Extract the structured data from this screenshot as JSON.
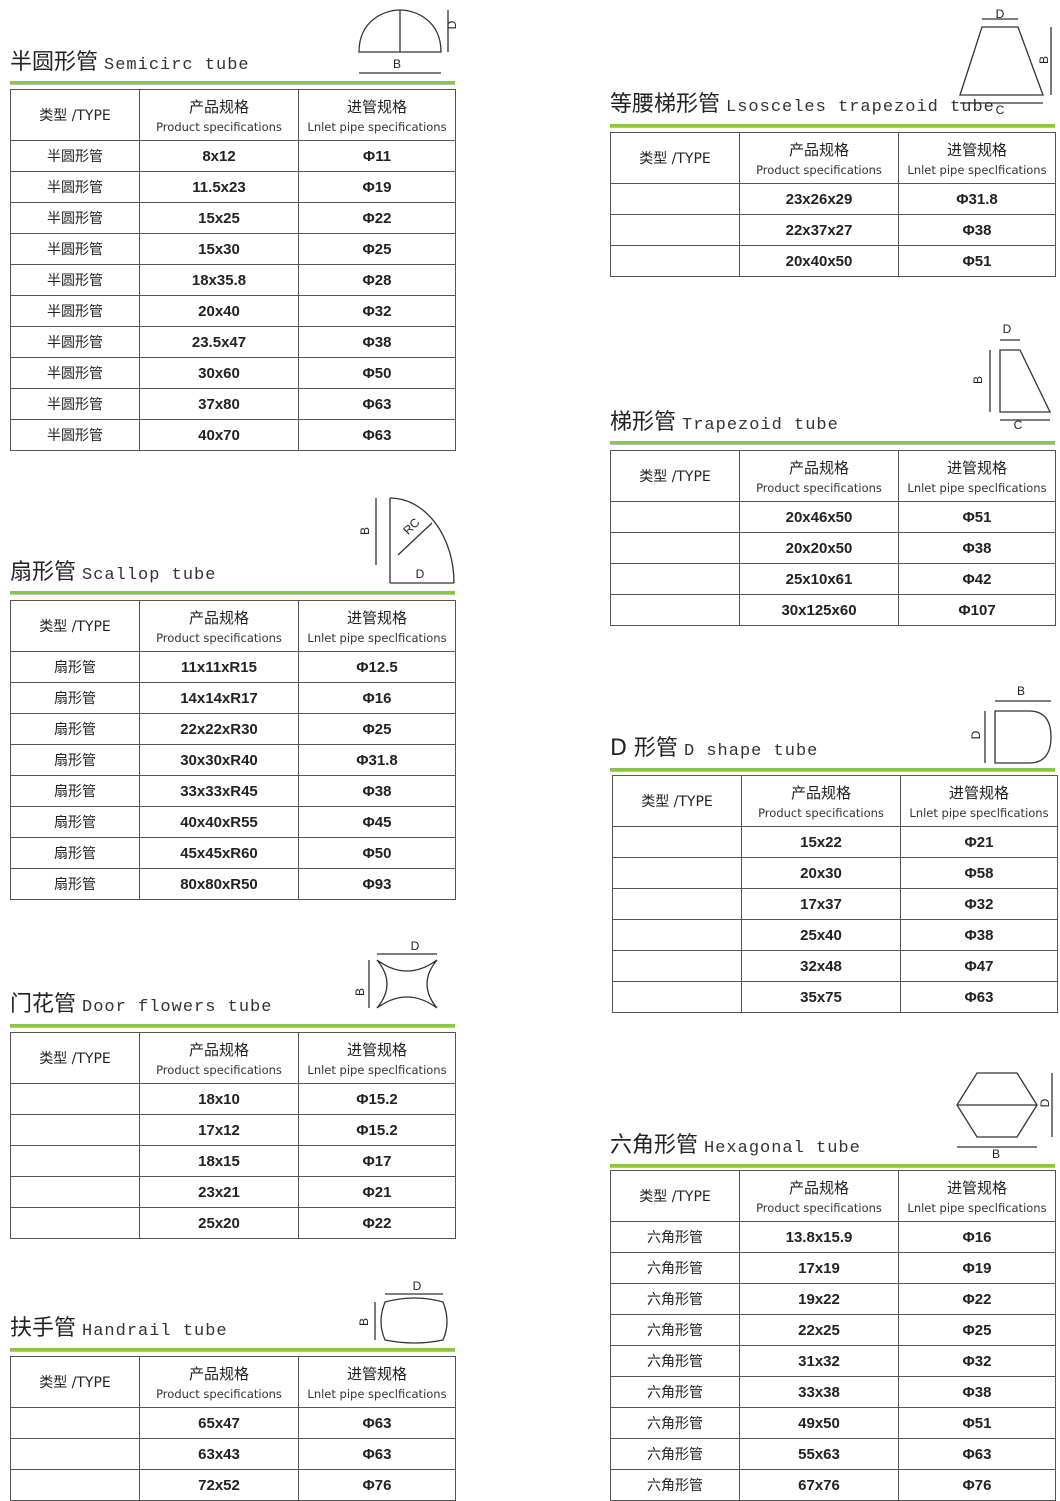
{
  "sections": [
    {
      "title_cn": "半圆形管",
      "title_en": "Semicirc tube",
      "diagram": {
        "d": "D",
        "b": "B"
      },
      "header": {
        "type": "类型 /TYPE",
        "spec_cn": "产品规格",
        "spec_en": "Product specifications",
        "inlet_cn": "进管规格",
        "inlet_en": "Lnlet pipe specifications"
      },
      "rows": [
        {
          "type": "半圆形管",
          "spec": "8x12",
          "inlet": "Φ11"
        },
        {
          "type": "半圆形管",
          "spec": "11.5x23",
          "inlet": "Φ19"
        },
        {
          "type": "半圆形管",
          "spec": "15x25",
          "inlet": "Φ22"
        },
        {
          "type": "半圆形管",
          "spec": "15x30",
          "inlet": "Φ25"
        },
        {
          "type": "半圆形管",
          "spec": "18x35.8",
          "inlet": "Φ28"
        },
        {
          "type": "半圆形管",
          "spec": "20x40",
          "inlet": "Φ32"
        },
        {
          "type": "半圆形管",
          "spec": "23.5x47",
          "inlet": "Φ38"
        },
        {
          "type": "半圆形管",
          "spec": "30x60",
          "inlet": "Φ50"
        },
        {
          "type": "半圆形管",
          "spec": "37x80",
          "inlet": "Φ63"
        },
        {
          "type": "半圆形管",
          "spec": "40x70",
          "inlet": "Φ63"
        }
      ]
    },
    {
      "title_cn": "扇形管",
      "title_en": "Scallop tube",
      "diagram": {
        "b": "B",
        "rc": "RC",
        "d": "D"
      },
      "header": {
        "type": "类型 /TYPE",
        "spec_cn": "产品规格",
        "spec_en": "Product specifications",
        "inlet_cn": "进管规格",
        "inlet_en": "Lnlet pipe speclfications"
      },
      "rows": [
        {
          "type": "扇形管",
          "spec": "11x11xR15",
          "inlet": "Φ12.5"
        },
        {
          "type": "扇形管",
          "spec": "14x14xR17",
          "inlet": "Φ16"
        },
        {
          "type": "扇形管",
          "spec": "22x22xR30",
          "inlet": "Φ25"
        },
        {
          "type": "扇形管",
          "spec": "30x30xR40",
          "inlet": "Φ31.8"
        },
        {
          "type": "扇形管",
          "spec": "33x33xR45",
          "inlet": "Φ38"
        },
        {
          "type": "扇形管",
          "spec": "40x40xR55",
          "inlet": "Φ45"
        },
        {
          "type": "扇形管",
          "spec": "45x45xR60",
          "inlet": "Φ50"
        },
        {
          "type": "扇形管",
          "spec": "80x80xR50",
          "inlet": "Φ93"
        }
      ]
    },
    {
      "title_cn": "门花管",
      "title_en": "Door flowers tube",
      "diagram": {
        "d": "D",
        "b": "B"
      },
      "header": {
        "type": "类型 /TYPE",
        "spec_cn": "产品规格",
        "spec_en": "Product specifications",
        "inlet_cn": "进管规格",
        "inlet_en": "Lnlet pipe speclfications"
      },
      "rows": [
        {
          "spec": "18x10",
          "inlet": "Φ15.2"
        },
        {
          "spec": "17x12",
          "inlet": "Φ15.2"
        },
        {
          "spec": "18x15",
          "inlet": "Φ17"
        },
        {
          "spec": "23x21",
          "inlet": "Φ21"
        },
        {
          "spec": "25x20",
          "inlet": "Φ22"
        }
      ]
    },
    {
      "title_cn": "扶手管",
      "title_en": "Handrail tube",
      "diagram": {
        "d": "D",
        "b": "B"
      },
      "header": {
        "type": "类型 /TYPE",
        "spec_cn": "产品规格",
        "spec_en": "Product specifications",
        "inlet_cn": "进管规格",
        "inlet_en": "Lnlet pipe speclfications"
      },
      "rows": [
        {
          "spec": "65x47",
          "inlet": "Φ63"
        },
        {
          "spec": "63x43",
          "inlet": "Φ63"
        },
        {
          "spec": "72x52",
          "inlet": "Φ76"
        }
      ]
    },
    {
      "title_cn": "等腰梯形管",
      "title_en": "Lsosceles trapezoid tube",
      "diagram": {
        "d": "D",
        "b": "B",
        "c": "C"
      },
      "header": {
        "type": "类型 /TYPE",
        "spec_cn": "产品规格",
        "spec_en": "Product specifications",
        "inlet_cn": "进管规格",
        "inlet_en": "Lnlet pipe speclfications"
      },
      "rows": [
        {
          "spec": "23x26x29",
          "inlet": "Φ31.8"
        },
        {
          "spec": "22x37x27",
          "inlet": "Φ38"
        },
        {
          "spec": "20x40x50",
          "inlet": "Φ51"
        }
      ]
    },
    {
      "title_cn": "梯形管",
      "title_en": "Trapezoid tube",
      "diagram": {
        "d": "D",
        "b": "B",
        "c": "C"
      },
      "header": {
        "type": "类型 /TYPE",
        "spec_cn": "产品规格",
        "spec_en": "Product specifications",
        "inlet_cn": "进管规格",
        "inlet_en": "Lnlet pipe speclfications"
      },
      "rows": [
        {
          "spec": "20x46x50",
          "inlet": "Φ51"
        },
        {
          "spec": "20x20x50",
          "inlet": "Φ38"
        },
        {
          "spec": "25x10x61",
          "inlet": "Φ42"
        },
        {
          "spec": "30x125x60",
          "inlet": "Φ107"
        }
      ]
    },
    {
      "title_cn": "D 形管",
      "title_en": "D shape tube",
      "diagram": {
        "b": "B",
        "d": "D"
      },
      "header": {
        "type": "类型 /TYPE",
        "spec_cn": "产品规格",
        "spec_en": "Product specifications",
        "inlet_cn": "进管规格",
        "inlet_en": "Lnlet pipe speclfications"
      },
      "rows": [
        {
          "spec": "15x22",
          "inlet": "Φ21"
        },
        {
          "spec": "20x30",
          "inlet": "Φ58"
        },
        {
          "spec": "17x37",
          "inlet": "Φ32"
        },
        {
          "spec": "25x40",
          "inlet": "Φ38"
        },
        {
          "spec": "32x48",
          "inlet": "Φ47"
        },
        {
          "spec": "35x75",
          "inlet": "Φ63"
        }
      ]
    },
    {
      "title_cn": "六角形管",
      "title_en": "Hexagonal tube",
      "diagram": {
        "d": "D",
        "b": "B"
      },
      "header": {
        "type": "类型 /TYPE",
        "spec_cn": "产品规格",
        "spec_en": "Product specifications",
        "inlet_cn": "进管规格",
        "inlet_en": "Lnlet pipe speclfications"
      },
      "rows": [
        {
          "type": "六角形管",
          "spec": "13.8x15.9",
          "inlet": "Φ16"
        },
        {
          "type": "六角形管",
          "spec": "17x19",
          "inlet": "Φ19"
        },
        {
          "type": "六角形管",
          "spec": "19x22",
          "inlet": "Φ22"
        },
        {
          "type": "六角形管",
          "spec": "22x25",
          "inlet": "Φ25"
        },
        {
          "type": "六角形管",
          "spec": "31x32",
          "inlet": "Φ32"
        },
        {
          "type": "六角形管",
          "spec": "33x38",
          "inlet": "Φ38"
        },
        {
          "type": "六角形管",
          "spec": "49x50",
          "inlet": "Φ51"
        },
        {
          "type": "六角形管",
          "spec": "55x63",
          "inlet": "Φ63"
        },
        {
          "type": "六角形管",
          "spec": "67x76",
          "inlet": "Φ76"
        }
      ]
    }
  ]
}
